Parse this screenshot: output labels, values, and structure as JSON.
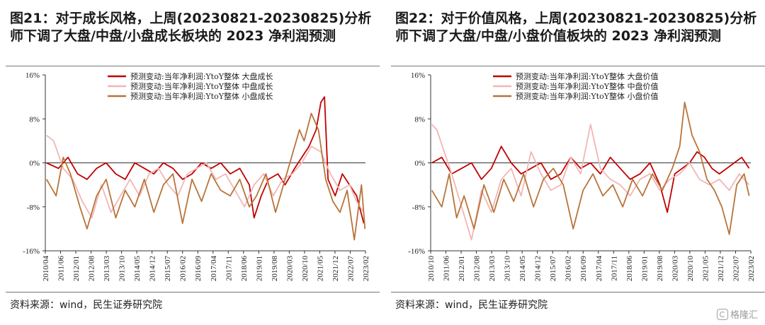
{
  "watermark": {
    "text": "格隆汇"
  },
  "chart_data": [
    {
      "type": "line",
      "title": "图21：对于成长风格，上周(20230821-20230825)分析师下调了大盘/中盘/小盘成长板块的 2023 净利润预测",
      "source": "资料来源：wind，民生证券研究院",
      "ylim": [
        -16,
        16
      ],
      "yticks": [
        "16%",
        "8%",
        "0%",
        "-8%",
        "-16%"
      ],
      "xlim": [
        2010.25,
        2023.67
      ],
      "xticks": [
        "2010/04",
        "2011/06",
        "2012/01",
        "2012/08",
        "2013/03",
        "2013/10",
        "2014/05",
        "2014/12",
        "2015/07",
        "2016/02",
        "2016/09",
        "2017/04",
        "2017/11",
        "2018/06",
        "2019/01",
        "2019/08",
        "2020/03",
        "2020/10",
        "2021/05",
        "2021/12",
        "2022/07",
        "2023/02"
      ],
      "legend": "top-center",
      "series": [
        {
          "name": "预测变动:当年净利润:YtoY整体 大盘成长",
          "color": "#c00000",
          "x": [
            2010.3,
            2010.8,
            2011.2,
            2011.6,
            2012.0,
            2012.4,
            2012.8,
            2013.2,
            2013.6,
            2014.0,
            2014.4,
            2014.8,
            2015.2,
            2015.6,
            2016.0,
            2016.4,
            2016.8,
            2017.2,
            2017.6,
            2018.0,
            2018.4,
            2018.8,
            2019.0,
            2019.3,
            2019.6,
            2020.0,
            2020.3,
            2020.7,
            2021.0,
            2021.3,
            2021.6,
            2021.8,
            2021.95,
            2022.1,
            2022.4,
            2022.7,
            2023.0,
            2023.3,
            2023.6
          ],
          "y": [
            0,
            -1,
            1,
            -2,
            -3,
            -1,
            0,
            -2,
            -3,
            0,
            -1,
            -2,
            0,
            -1,
            -3,
            -2,
            0,
            -1,
            0,
            -2,
            -1,
            -4,
            -10,
            -6,
            -3,
            -2,
            -4,
            -1,
            1,
            3,
            6,
            11,
            12,
            -3,
            -6,
            -2,
            -4,
            -6,
            -11
          ]
        },
        {
          "name": "预测变动:当年净利润:YtoY整体 中盘成长",
          "color": "#f2b6b6",
          "x": [
            2010.3,
            2010.6,
            2011.0,
            2011.4,
            2011.8,
            2012.2,
            2012.6,
            2013.0,
            2013.4,
            2013.8,
            2014.2,
            2014.6,
            2015.0,
            2015.4,
            2015.8,
            2016.2,
            2016.6,
            2017.0,
            2017.4,
            2017.8,
            2018.2,
            2018.6,
            2019.0,
            2019.4,
            2019.8,
            2020.2,
            2020.6,
            2021.0,
            2021.4,
            2021.8,
            2022.2,
            2022.6,
            2023.0,
            2023.3,
            2023.6
          ],
          "y": [
            5,
            4,
            -1,
            -3,
            -7,
            -10,
            -4,
            -9,
            -6,
            -3,
            -6,
            -2,
            -1,
            -4,
            -6,
            -2,
            -1,
            0,
            -3,
            -2,
            -5,
            -8,
            -4,
            -2,
            -6,
            -3,
            -2,
            0,
            3,
            2,
            -2,
            -5,
            -4,
            -7,
            -9
          ]
        },
        {
          "name": "预测变动:当年净利润:YtoY整体 小盘成长",
          "color": "#b8743a",
          "x": [
            2010.3,
            2010.7,
            2011.0,
            2011.3,
            2011.7,
            2012.0,
            2012.4,
            2012.8,
            2013.2,
            2013.6,
            2014.0,
            2014.4,
            2014.8,
            2015.2,
            2015.6,
            2016.0,
            2016.4,
            2016.8,
            2017.2,
            2017.6,
            2018.0,
            2018.4,
            2018.8,
            2019.1,
            2019.5,
            2019.9,
            2020.3,
            2020.7,
            2020.9,
            2021.1,
            2021.4,
            2021.7,
            2022.0,
            2022.3,
            2022.6,
            2022.9,
            2023.2,
            2023.5,
            2023.65
          ],
          "y": [
            -3,
            -6,
            1,
            -2,
            -8,
            -12,
            -6,
            -3,
            -10,
            -5,
            -8,
            -3,
            -9,
            -4,
            -2,
            -11,
            -3,
            -7,
            -2,
            -5,
            -6,
            -3,
            -8,
            -6,
            -2,
            -9,
            -3,
            3,
            6,
            4,
            9,
            6,
            -3,
            -7,
            -9,
            -5,
            -14,
            -4,
            -12
          ]
        }
      ]
    },
    {
      "type": "line",
      "title": "图22：对于价值风格，上周(20230821-20230825)分析师下调了大盘/中盘/小盘价值板块的 2023 净利润预测",
      "source": "资料来源：wind，民生证券研究院",
      "ylim": [
        -16,
        16
      ],
      "yticks": [
        "16%",
        "8%",
        "0%",
        "-8%",
        "-16%"
      ],
      "xlim": [
        2010.75,
        2023.67
      ],
      "xticks": [
        "2010/10",
        "2011/06",
        "2012/01",
        "2012/08",
        "2013/03",
        "2013/10",
        "2014/05",
        "2014/12",
        "2015/07",
        "2016/02",
        "2016/09",
        "2017/04",
        "2017/11",
        "2018/06",
        "2019/01",
        "2019/08",
        "2020/03",
        "2020/10",
        "2021/05",
        "2021/12",
        "2022/07",
        "2023/02"
      ],
      "legend": "top-center",
      "series": [
        {
          "name": "预测变动:当年净利润:YtoY整体 大盘价值",
          "color": "#c00000",
          "x": [
            2010.8,
            2011.2,
            2011.6,
            2012.0,
            2012.4,
            2012.8,
            2013.2,
            2013.6,
            2014.0,
            2014.4,
            2014.8,
            2015.2,
            2015.6,
            2016.0,
            2016.4,
            2016.8,
            2017.2,
            2017.6,
            2018.0,
            2018.4,
            2018.8,
            2019.2,
            2019.6,
            2020.0,
            2020.3,
            2020.6,
            2020.9,
            2021.2,
            2021.5,
            2021.8,
            2022.1,
            2022.4,
            2022.7,
            2023.0,
            2023.3,
            2023.6
          ],
          "y": [
            0,
            1,
            -2,
            -1,
            0,
            -3,
            -1,
            3,
            0,
            -2,
            -1,
            0,
            -3,
            -2,
            1,
            -1,
            0,
            -2,
            1,
            -1,
            -3,
            -2,
            0,
            -4,
            -9,
            -2,
            -1,
            0,
            2,
            1,
            -1,
            -2,
            -1,
            0,
            1,
            -1
          ]
        },
        {
          "name": "预测变动:当年净利润:YtoY整体 中盘价值",
          "color": "#f2b6b6",
          "x": [
            2010.8,
            2011.0,
            2011.3,
            2011.6,
            2012.0,
            2012.4,
            2012.8,
            2013.2,
            2013.6,
            2014.0,
            2014.4,
            2014.8,
            2015.2,
            2015.6,
            2016.0,
            2016.4,
            2016.8,
            2017.2,
            2017.6,
            2018.0,
            2018.4,
            2018.8,
            2019.2,
            2019.6,
            2020.0,
            2020.4,
            2020.8,
            2021.2,
            2021.6,
            2022.0,
            2022.4,
            2022.8,
            2023.2,
            2023.6
          ],
          "y": [
            7,
            6,
            2,
            -2,
            -8,
            -14,
            -5,
            -9,
            -3,
            -1,
            -6,
            2,
            -2,
            -5,
            -4,
            1,
            -2,
            7,
            -1,
            -3,
            -4,
            -6,
            -3,
            -2,
            -5,
            -3,
            -2,
            0,
            -3,
            -4,
            -3,
            -5,
            -2,
            -4
          ]
        },
        {
          "name": "预测变动:当年净利润:YtoY整体 小盘价值",
          "color": "#b8743a",
          "x": [
            2010.8,
            2011.2,
            2011.5,
            2011.8,
            2012.1,
            2012.5,
            2012.9,
            2013.3,
            2013.7,
            2014.1,
            2014.5,
            2014.9,
            2015.3,
            2015.7,
            2016.1,
            2016.5,
            2016.9,
            2017.3,
            2017.7,
            2018.1,
            2018.5,
            2018.9,
            2019.3,
            2019.7,
            2020.1,
            2020.5,
            2020.8,
            2021.0,
            2021.3,
            2021.6,
            2021.9,
            2022.2,
            2022.5,
            2022.8,
            2023.1,
            2023.4,
            2023.6
          ],
          "y": [
            -5,
            -8,
            -2,
            -10,
            -6,
            -12,
            -4,
            -9,
            -3,
            -7,
            -2,
            -8,
            -3,
            -1,
            -4,
            -12,
            -5,
            -2,
            -6,
            -4,
            -8,
            -3,
            -6,
            -2,
            -5,
            -1,
            3,
            11,
            5,
            2,
            -3,
            -5,
            -8,
            -13,
            -4,
            -2,
            -6
          ]
        }
      ]
    }
  ]
}
